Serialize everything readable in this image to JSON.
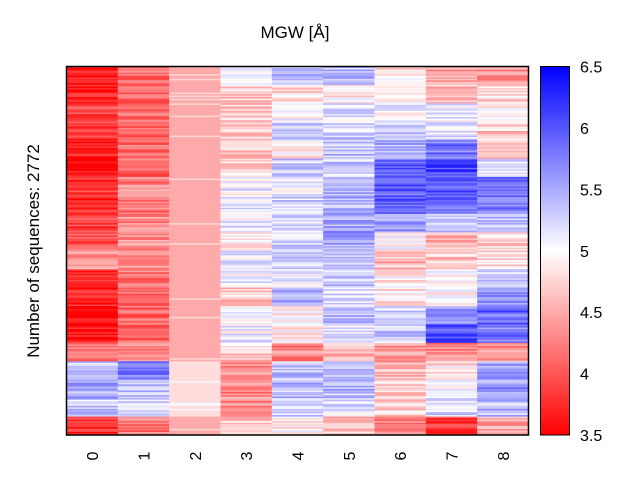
{
  "chart_data": {
    "type": "heatmap",
    "title": "MGW [Å]",
    "ylabel": "Number of sequences: 2772",
    "xlabel": "",
    "n_rows": 2772,
    "x_categories": [
      "0",
      "1",
      "2",
      "3",
      "4",
      "5",
      "6",
      "7",
      "8"
    ],
    "colormap": {
      "name": "red-white-blue",
      "low_color": "#ff0000",
      "mid_color": "#ffffff",
      "high_color": "#0000ff"
    },
    "colorbar": {
      "range": [
        3.5,
        6.5
      ],
      "ticks": [
        "3.5",
        "4",
        "4.5",
        "5",
        "5.5",
        "6",
        "6.5"
      ]
    },
    "row_band_fractions": [
      0,
      0.05,
      0.1,
      0.15,
      0.2,
      0.25,
      0.3,
      0.35,
      0.4,
      0.45,
      0.5,
      0.55,
      0.6,
      0.65,
      0.7,
      0.75,
      0.8,
      0.85,
      0.9,
      0.95
    ],
    "column_profiles": [
      [
        3.6,
        3.7,
        3.9,
        3.8,
        3.7,
        3.6,
        3.8,
        3.7,
        3.9,
        4.0,
        4.4,
        3.8,
        3.7,
        3.6,
        3.6,
        4.2,
        5.4,
        5.5,
        5.3,
        3.8
      ],
      [
        4.1,
        4.1,
        4.2,
        4.1,
        4.1,
        4.1,
        4.3,
        4.2,
        4.3,
        4.4,
        4.4,
        4.2,
        4.2,
        4.1,
        4.1,
        4.3,
        5.7,
        5.4,
        5.2,
        4.2
      ],
      [
        4.5,
        4.5,
        4.5,
        4.5,
        4.5,
        4.5,
        4.5,
        4.5,
        4.5,
        4.5,
        4.5,
        4.5,
        4.5,
        4.5,
        4.5,
        4.5,
        4.8,
        4.8,
        4.8,
        4.5
      ],
      [
        5.1,
        4.7,
        4.7,
        4.7,
        4.7,
        4.8,
        5.1,
        5.1,
        5.1,
        4.9,
        5.1,
        5.1,
        4.7,
        5.1,
        5.1,
        4.7,
        4.3,
        4.3,
        4.3,
        4.7
      ],
      [
        5.4,
        4.8,
        5.0,
        5.3,
        4.9,
        5.3,
        5.1,
        5.3,
        5.2,
        5.2,
        5.3,
        5.1,
        5.4,
        4.9,
        4.9,
        4.3,
        5.4,
        5.4,
        5.3,
        4.9
      ],
      [
        5.4,
        4.9,
        5.2,
        5.3,
        5.4,
        5.3,
        5.5,
        5.4,
        5.5,
        5.5,
        5.4,
        5.3,
        5.2,
        5.4,
        5.2,
        4.6,
        5.3,
        5.4,
        5.2,
        4.6
      ],
      [
        4.8,
        4.9,
        5.1,
        5.3,
        5.5,
        5.9,
        6.0,
        5.9,
        5.6,
        5.0,
        4.6,
        4.9,
        4.8,
        5.2,
        5.3,
        4.4,
        4.6,
        4.7,
        4.8,
        4.3
      ],
      [
        4.4,
        4.6,
        5.1,
        5.2,
        5.8,
        6.1,
        6.0,
        5.9,
        5.4,
        4.5,
        4.7,
        4.9,
        5.0,
        5.6,
        6.0,
        4.3,
        4.9,
        5.1,
        5.2,
        3.8
      ],
      [
        4.4,
        4.8,
        5.0,
        4.7,
        4.6,
        5.2,
        5.9,
        5.8,
        5.4,
        4.7,
        4.8,
        5.2,
        5.7,
        5.9,
        5.8,
        4.3,
        5.5,
        5.6,
        5.4,
        4.5
      ]
    ]
  }
}
